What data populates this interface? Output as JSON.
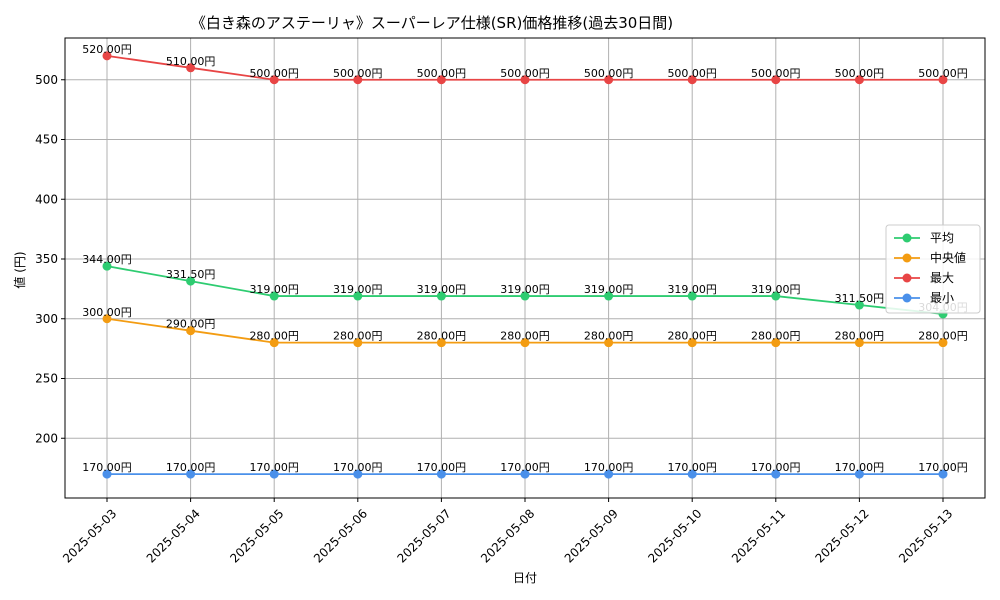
{
  "chart_data": {
    "type": "line",
    "title": "《白き森のアステーリャ》スーパーレア仕様(SR)価格推移(過去30日間)",
    "xlabel": "日付",
    "ylabel": "値 (円)",
    "ylim": [
      150,
      535
    ],
    "yticks": [
      200,
      250,
      300,
      350,
      400,
      450,
      500
    ],
    "grid": true,
    "legend_position": "center-right",
    "value_suffix": "円",
    "categories": [
      "2025-05-03",
      "2025-05-04",
      "2025-05-05",
      "2025-05-06",
      "2025-05-07",
      "2025-05-08",
      "2025-05-09",
      "2025-05-10",
      "2025-05-11",
      "2025-05-12",
      "2025-05-13"
    ],
    "series": [
      {
        "name": "平均",
        "color": "#2ecc71",
        "values": [
          344.0,
          331.5,
          319.0,
          319.0,
          319.0,
          319.0,
          319.0,
          319.0,
          319.0,
          311.5,
          304.0
        ]
      },
      {
        "name": "中央値",
        "color": "#f39c12",
        "values": [
          300.0,
          290.0,
          280.0,
          280.0,
          280.0,
          280.0,
          280.0,
          280.0,
          280.0,
          280.0,
          280.0
        ]
      },
      {
        "name": "最大",
        "color": "#e84545",
        "values": [
          520.0,
          510.0,
          500.0,
          500.0,
          500.0,
          500.0,
          500.0,
          500.0,
          500.0,
          500.0,
          500.0
        ]
      },
      {
        "name": "最小",
        "color": "#4a90ea",
        "values": [
          170.0,
          170.0,
          170.0,
          170.0,
          170.0,
          170.0,
          170.0,
          170.0,
          170.0,
          170.0,
          170.0
        ]
      }
    ]
  }
}
